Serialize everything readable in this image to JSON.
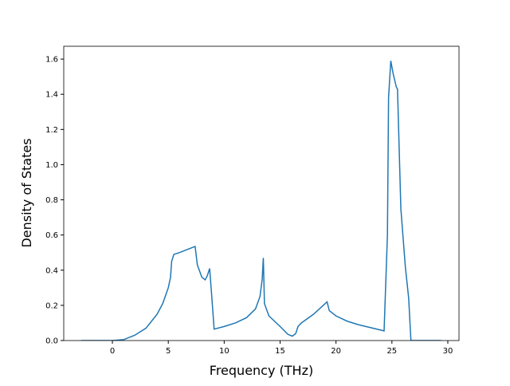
{
  "chart_data": {
    "type": "line",
    "x_label": "Frequency (THz)",
    "y_label": "Density of States",
    "x": [
      -2.8,
      0,
      1,
      2,
      3,
      4,
      4.5,
      5,
      5.2,
      5.3,
      5.5,
      6,
      7,
      7.4,
      7.6,
      8,
      8.3,
      8.5,
      8.7,
      8.9,
      9.1,
      10,
      11,
      12,
      12.8,
      13.2,
      13.4,
      13.5,
      13.6,
      14,
      15,
      15.7,
      16.1,
      16.4,
      16.6,
      16.9,
      18,
      19.2,
      19.4,
      20,
      21,
      22,
      23,
      24.3,
      24.6,
      24.7,
      24.9,
      25.1,
      25.4,
      25.5,
      25.8,
      26.2,
      26.5,
      26.7,
      29.4
    ],
    "series": [
      {
        "color": "#1f77b4",
        "values": [
          0,
          0,
          0.005,
          0.03,
          0.07,
          0.15,
          0.21,
          0.3,
          0.36,
          0.45,
          0.49,
          0.5,
          0.525,
          0.535,
          0.43,
          0.36,
          0.345,
          0.37,
          0.41,
          0.24,
          0.065,
          0.08,
          0.1,
          0.13,
          0.18,
          0.25,
          0.35,
          0.47,
          0.21,
          0.14,
          0.08,
          0.035,
          0.025,
          0.04,
          0.08,
          0.1,
          0.15,
          0.22,
          0.17,
          0.14,
          0.11,
          0.09,
          0.075,
          0.055,
          0.6,
          1.38,
          1.59,
          1.52,
          1.44,
          1.43,
          0.75,
          0.42,
          0.24,
          0,
          0
        ]
      }
    ],
    "xlim": [
      -4.35,
      31.0
    ],
    "ylim": [
      0,
      1.673
    ],
    "xticks": [
      0,
      5,
      10,
      15,
      20,
      25,
      30
    ],
    "yticks": [
      {
        "value": 0,
        "label": "0.0"
      },
      {
        "value": 0.2,
        "label": "0.2"
      },
      {
        "value": 0.4,
        "label": "0.4"
      },
      {
        "value": 0.6,
        "label": "0.6"
      },
      {
        "value": 0.8,
        "label": "0.8"
      },
      {
        "value": 1.0,
        "label": "1.0"
      },
      {
        "value": 1.2,
        "label": "1.2"
      },
      {
        "value": 1.4,
        "label": "1.4"
      },
      {
        "value": 1.6,
        "label": "1.6"
      }
    ],
    "grid": false
  }
}
